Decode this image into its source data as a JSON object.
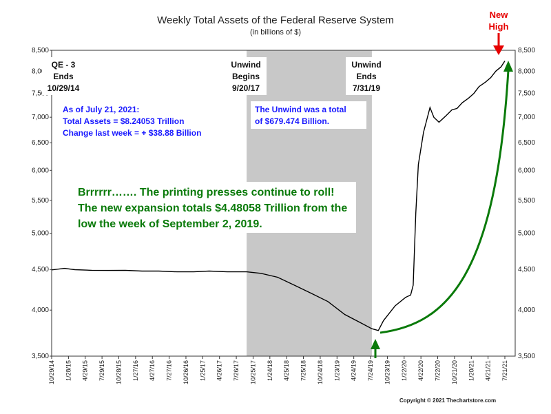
{
  "chart_data": {
    "type": "line",
    "title": "Weekly Total Assets of the Federal Reserve System",
    "subtitle": "(in billions of $)",
    "y_scale": "log",
    "ylim": [
      3500,
      8500
    ],
    "y_ticks": [
      3500,
      4000,
      4500,
      5000,
      5500,
      6000,
      6500,
      7000,
      7500,
      8000,
      8500
    ],
    "y_tick_labels": [
      "3,500",
      "4,000",
      "4,500",
      "5,000",
      "5,500",
      "6,000",
      "6,500",
      "7,000",
      "7,500",
      "8,000",
      "8,500"
    ],
    "x_range": [
      "2014-10-29",
      "2021-09-15"
    ],
    "x_tick_labels": [
      "10/29/14",
      "1/28/15",
      "4/29/15",
      "7/29/15",
      "10/28/15",
      "1/27/16",
      "4/27/16",
      "7/27/16",
      "10/26/16",
      "1/25/17",
      "4/26/17",
      "7/26/17",
      "10/25/17",
      "1/24/18",
      "4/25/18",
      "7/25/18",
      "10/24/18",
      "1/23/19",
      "4/24/19",
      "7/24/19",
      "10/23/19",
      "1/22/20",
      "4/22/20",
      "7/22/20",
      "10/21/20",
      "1/20/21",
      "4/21/21",
      "7/21/21"
    ],
    "x_tick_dates": [
      "2014-10-29",
      "2015-01-28",
      "2015-04-29",
      "2015-07-29",
      "2015-10-28",
      "2016-01-27",
      "2016-04-27",
      "2016-07-27",
      "2016-10-26",
      "2017-01-25",
      "2017-04-26",
      "2017-07-26",
      "2017-10-25",
      "2018-01-24",
      "2018-04-25",
      "2018-07-25",
      "2018-10-24",
      "2019-01-23",
      "2019-04-24",
      "2019-07-24",
      "2019-10-23",
      "2020-01-22",
      "2020-04-22",
      "2020-07-22",
      "2020-10-21",
      "2021-01-20",
      "2021-04-21",
      "2021-07-21"
    ],
    "series": [
      {
        "color": "#000000",
        "x": [
          "2014-10-29",
          "2015-01-07",
          "2015-03-04",
          "2015-06-03",
          "2015-09-02",
          "2015-12-02",
          "2016-03-02",
          "2016-06-01",
          "2016-09-07",
          "2016-12-07",
          "2017-03-01",
          "2017-06-07",
          "2017-09-20",
          "2017-12-06",
          "2018-03-07",
          "2018-06-06",
          "2018-09-05",
          "2018-12-05",
          "2019-03-06",
          "2019-06-05",
          "2019-07-31",
          "2019-09-04",
          "2019-10-02",
          "2019-12-04",
          "2020-01-29",
          "2020-02-26",
          "2020-03-11",
          "2020-03-25",
          "2020-04-08",
          "2020-05-06",
          "2020-06-10",
          "2020-07-01",
          "2020-07-29",
          "2020-09-02",
          "2020-10-07",
          "2020-11-04",
          "2020-12-02",
          "2021-01-06",
          "2021-02-03",
          "2021-03-03",
          "2021-04-07",
          "2021-05-05",
          "2021-06-02",
          "2021-06-30",
          "2021-07-21"
        ],
        "y": [
          4495,
          4515,
          4498,
          4490,
          4488,
          4490,
          4480,
          4480,
          4470,
          4470,
          4480,
          4470,
          4470,
          4450,
          4400,
          4300,
          4200,
          4100,
          3950,
          3850,
          3790,
          3770,
          3880,
          4050,
          4150,
          4180,
          4300,
          5300,
          6100,
          6700,
          7200,
          7000,
          6900,
          7020,
          7150,
          7180,
          7300,
          7400,
          7500,
          7650,
          7750,
          7850,
          8000,
          8100,
          8240
        ]
      }
    ],
    "shaded_region": {
      "start": "2017-09-20",
      "end": "2019-07-31",
      "color": "#c8c8c8"
    },
    "markers": [
      {
        "date": "2014-10-29",
        "label_lines": [
          "QE - 3",
          "Ends",
          "10/29/14"
        ]
      },
      {
        "date": "2017-09-20",
        "label_lines": [
          "Unwind",
          "Begins",
          "9/20/17"
        ]
      },
      {
        "date": "2019-07-31",
        "label_lines": [
          "Unwind",
          "Ends",
          "7/31/19"
        ]
      }
    ],
    "annotations": {
      "summary": {
        "line1": "As of July 21, 2021:",
        "line2": "Total Assets = $8.24053 Trillion",
        "line3": "Change last week = + $38.88 Billion"
      },
      "unwind": {
        "line1": "The Unwind was a total",
        "line2": "of $679.474 Billion."
      },
      "expansion": {
        "line1": "Brrrrrr…….  The printing presses continue to roll!",
        "line2": "The new expansion totals $4.48058 Trillion from the",
        "line3": "low the week of September 2, 2019."
      },
      "new_high": {
        "line1": "New",
        "line2": "High"
      }
    },
    "copyright": "Copyright © 2021 Thechartstore.com",
    "colors": {
      "line": "#000000",
      "shade": "#c8c8c8",
      "green": "#0a7a0a",
      "red": "#e60000",
      "blue": "#1a1aff"
    }
  }
}
